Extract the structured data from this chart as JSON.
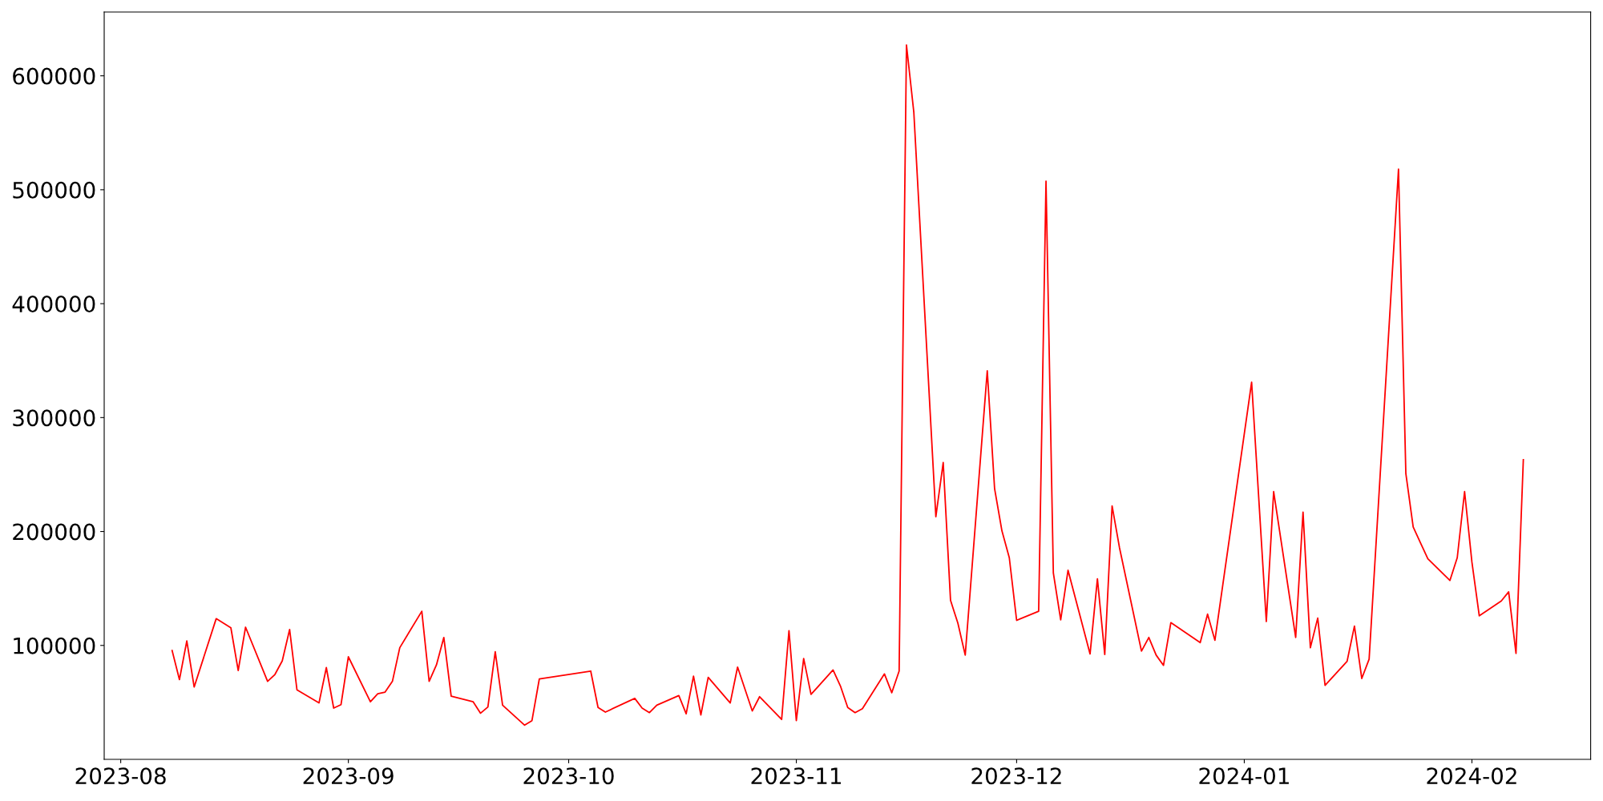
{
  "chart_data": {
    "type": "line",
    "x": [
      "2023-08-08",
      "2023-08-09",
      "2023-08-10",
      "2023-08-11",
      "2023-08-14",
      "2023-08-16",
      "2023-08-17",
      "2023-08-18",
      "2023-08-21",
      "2023-08-22",
      "2023-08-23",
      "2023-08-24",
      "2023-08-25",
      "2023-08-28",
      "2023-08-29",
      "2023-08-30",
      "2023-08-31",
      "2023-09-01",
      "2023-09-04",
      "2023-09-05",
      "2023-09-06",
      "2023-09-07",
      "2023-09-08",
      "2023-09-11",
      "2023-09-12",
      "2023-09-13",
      "2023-09-14",
      "2023-09-15",
      "2023-09-18",
      "2023-09-19",
      "2023-09-20",
      "2023-09-21",
      "2023-09-22",
      "2023-09-25",
      "2023-09-26",
      "2023-09-27",
      "2023-10-04",
      "2023-10-05",
      "2023-10-06",
      "2023-10-10",
      "2023-10-11",
      "2023-10-12",
      "2023-10-13",
      "2023-10-16",
      "2023-10-17",
      "2023-10-18",
      "2023-10-19",
      "2023-10-20",
      "2023-10-23",
      "2023-10-24",
      "2023-10-26",
      "2023-10-27",
      "2023-10-30",
      "2023-10-31",
      "2023-11-01",
      "2023-11-02",
      "2023-11-03",
      "2023-11-06",
      "2023-11-07",
      "2023-11-08",
      "2023-11-09",
      "2023-11-10",
      "2023-11-13",
      "2023-11-14",
      "2023-11-15",
      "2023-11-16",
      "2023-11-17",
      "2023-11-20",
      "2023-11-21",
      "2023-11-22",
      "2023-11-23",
      "2023-11-24",
      "2023-11-27",
      "2023-11-28",
      "2023-11-29",
      "2023-11-30",
      "2023-12-01",
      "2023-12-04",
      "2023-12-05",
      "2023-12-06",
      "2023-12-07",
      "2023-12-08",
      "2023-12-11",
      "2023-12-12",
      "2023-12-13",
      "2023-12-14",
      "2023-12-15",
      "2023-12-18",
      "2023-12-19",
      "2023-12-20",
      "2023-12-21",
      "2023-12-22",
      "2023-12-26",
      "2023-12-27",
      "2023-12-28",
      "2024-01-02",
      "2024-01-04",
      "2024-01-05",
      "2024-01-08",
      "2024-01-09",
      "2024-01-10",
      "2024-01-11",
      "2024-01-12",
      "2024-01-15",
      "2024-01-16",
      "2024-01-17",
      "2024-01-18",
      "2024-01-22",
      "2024-01-23",
      "2024-01-24",
      "2024-01-25",
      "2024-01-26",
      "2024-01-29",
      "2024-01-30",
      "2024-01-31",
      "2024-02-01",
      "2024-02-02",
      "2024-02-05",
      "2024-02-06",
      "2024-02-07",
      "2024-02-08"
    ],
    "series": [
      {
        "color": "#ff0000",
        "values": [
          95500,
          70000,
          104000,
          63500,
          123500,
          115500,
          78000,
          116000,
          68500,
          74500,
          86500,
          114000,
          61000,
          49500,
          80500,
          45000,
          48000,
          90000,
          50500,
          57500,
          59000,
          68500,
          98000,
          130000,
          68500,
          83000,
          107000,
          55500,
          50500,
          40500,
          46000,
          94500,
          47500,
          30000,
          34000,
          70500,
          77500,
          45500,
          41500,
          53500,
          45000,
          41000,
          47500,
          56000,
          40000,
          73000,
          39000,
          72000,
          49500,
          81000,
          42500,
          55000,
          35000,
          113000,
          34000,
          88500,
          57000,
          78500,
          64500,
          45500,
          41000,
          44500,
          75000,
          58500,
          77500,
          627000,
          568000,
          213000,
          260500,
          139500,
          119500,
          91500,
          341000,
          237500,
          200500,
          177000,
          122000,
          130000,
          507500,
          163500,
          122500,
          166000,
          92500,
          158500,
          92000,
          222500,
          186000,
          95000,
          107000,
          91500,
          82500,
          120000,
          102500,
          127500,
          104500,
          331000,
          121000,
          235000,
          107000,
          217000,
          98000,
          124000,
          65000,
          86000,
          117000,
          71000,
          88000,
          518000,
          251000,
          204000,
          190000,
          176000,
          157000,
          177000,
          235000,
          173000,
          126000,
          139000,
          147000,
          93000,
          263000
        ]
      }
    ],
    "xlim": [
      "2023-07-29T18:00",
      "2024-02-17T04:00"
    ],
    "xticks": [
      {
        "value": "2023-08-01",
        "label": "2023-08"
      },
      {
        "value": "2023-09-01",
        "label": "2023-09"
      },
      {
        "value": "2023-10-01",
        "label": "2023-10"
      },
      {
        "value": "2023-11-01",
        "label": "2023-11"
      },
      {
        "value": "2023-12-01",
        "label": "2023-12"
      },
      {
        "value": "2024-01-01",
        "label": "2024-01"
      },
      {
        "value": "2024-02-01",
        "label": "2024-02"
      }
    ],
    "ylim": [
      0,
      656000
    ],
    "yticks": [
      100000,
      200000,
      300000,
      400000,
      500000,
      600000
    ],
    "line_style": "solid"
  }
}
